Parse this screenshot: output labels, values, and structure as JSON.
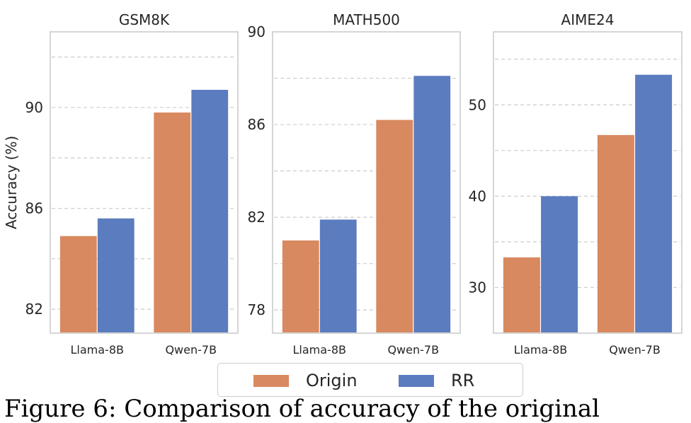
{
  "chart_data": [
    {
      "type": "bar",
      "title": "GSM8K",
      "xlabel": "",
      "ylabel": "Accuracy (%)",
      "categories": [
        "Llama-8B",
        "Qwen-7B"
      ],
      "series": [
        {
          "name": "Origin",
          "values": [
            84.9,
            89.8
          ]
        },
        {
          "name": "RR",
          "values": [
            85.6,
            90.7
          ]
        }
      ],
      "ylim": [
        81.05,
        93.0
      ],
      "yticks": [
        82,
        86,
        90
      ],
      "ytick_labels": [
        "82",
        "86",
        "90"
      ],
      "grid_y": [
        82,
        84,
        86,
        88,
        90,
        92
      ],
      "grid": true
    },
    {
      "type": "bar",
      "title": "MATH500",
      "xlabel": "",
      "ylabel": "",
      "categories": [
        "Llama-8B",
        "Qwen-7B"
      ],
      "series": [
        {
          "name": "Origin",
          "values": [
            81.0,
            86.2
          ]
        },
        {
          "name": "RR",
          "values": [
            81.9,
            88.1
          ]
        }
      ],
      "ylim": [
        77.0,
        90.0
      ],
      "yticks": [
        78,
        82,
        86,
        90
      ],
      "ytick_labels": [
        "78",
        "82",
        "86",
        "90"
      ],
      "grid_y": [
        78,
        80,
        82,
        84,
        86,
        88
      ],
      "grid": true
    },
    {
      "type": "bar",
      "title": "AIME24",
      "xlabel": "",
      "ylabel": "",
      "categories": [
        "Llama-8B",
        "Qwen-7B"
      ],
      "series": [
        {
          "name": "Origin",
          "values": [
            33.3,
            46.7
          ]
        },
        {
          "name": "RR",
          "values": [
            40.0,
            53.3
          ]
        }
      ],
      "ylim": [
        25.0,
        58.0
      ],
      "yticks": [
        30,
        40,
        50
      ],
      "ytick_labels": [
        "30",
        "40",
        "50"
      ],
      "grid_y": [
        30,
        35,
        40,
        45,
        50,
        55
      ],
      "grid": true
    }
  ],
  "legend": {
    "placement": "bottom-center",
    "items": [
      {
        "label": "Origin",
        "color": "#d8895f"
      },
      {
        "label": "RR",
        "color": "#5b7cbf"
      }
    ]
  },
  "colors": {
    "Origin": "#d8895f",
    "RR": "#5b7cbf",
    "grid": "#cccccc",
    "spine": "#cccccc",
    "text": "#262626"
  },
  "caption": "Figure 6: Comparison of accuracy of the original"
}
